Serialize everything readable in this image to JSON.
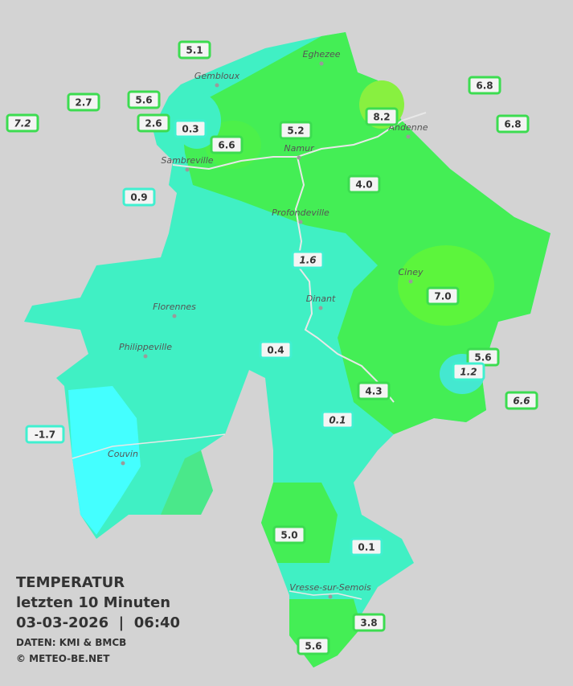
{
  "legend": {
    "title": "TEMPERATUR",
    "period": "letzten 10 Minuten",
    "datetime": "03-03-2026  |  06:40",
    "source": "DATEN: KMI & BMCB",
    "copyright": "© METEO-BE.NET"
  },
  "cities": [
    {
      "name": "Eghezee"
    },
    {
      "name": "Gembloux"
    },
    {
      "name": "Andenne"
    },
    {
      "name": "Namur"
    },
    {
      "name": "Sambreville"
    },
    {
      "name": "Profondeville"
    },
    {
      "name": "Ciney"
    },
    {
      "name": "Dinant"
    },
    {
      "name": "Florennes"
    },
    {
      "name": "Philippeville"
    },
    {
      "name": "Couvin"
    },
    {
      "name": "Vresse-sur-Semois"
    }
  ],
  "stations": [
    {
      "label": "5.1"
    },
    {
      "label": "2.7"
    },
    {
      "label": "5.6"
    },
    {
      "label": "7.2"
    },
    {
      "label": "2.6"
    },
    {
      "label": "0.3"
    },
    {
      "label": "6.6"
    },
    {
      "label": "5.2"
    },
    {
      "label": "8.2"
    },
    {
      "label": "6.8"
    },
    {
      "label": "6.8"
    },
    {
      "label": "0.9"
    },
    {
      "label": "4.0"
    },
    {
      "label": "1.6"
    },
    {
      "label": "7.0"
    },
    {
      "label": "0.4"
    },
    {
      "label": "5.6"
    },
    {
      "label": "1.2"
    },
    {
      "label": "6.6"
    },
    {
      "label": "4.3"
    },
    {
      "label": "0.1"
    },
    {
      "label": "-1.7"
    },
    {
      "label": "5.0"
    },
    {
      "label": "0.1"
    },
    {
      "label": "3.8"
    },
    {
      "label": "5.6"
    }
  ]
}
